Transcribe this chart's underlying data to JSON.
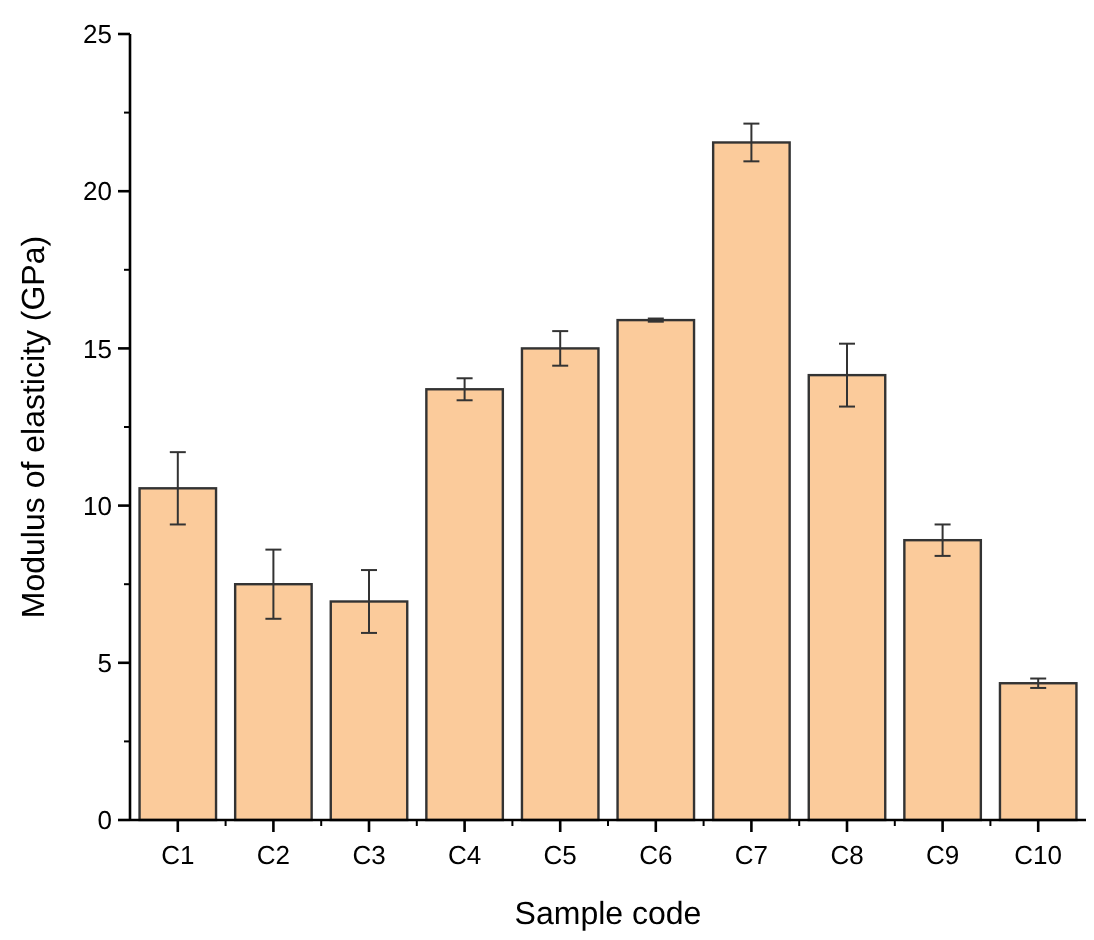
{
  "chart_data": {
    "type": "bar",
    "xlabel": "Sample code",
    "ylabel": "Modulus of elasticity (GPa)",
    "categories": [
      "C1",
      "C2",
      "C3",
      "C4",
      "C5",
      "C6",
      "C7",
      "C8",
      "C9",
      "C10"
    ],
    "values": [
      10.55,
      7.5,
      6.95,
      13.7,
      15.0,
      15.9,
      21.55,
      14.15,
      8.9,
      4.35
    ],
    "errors": [
      1.15,
      1.1,
      1.0,
      0.35,
      0.55,
      0.05,
      0.6,
      1.0,
      0.5,
      0.15
    ],
    "color": "#fbcb9b",
    "ylim": [
      0,
      25
    ],
    "yticks": [
      0,
      5,
      10,
      15,
      20,
      25
    ],
    "grid": false
  }
}
